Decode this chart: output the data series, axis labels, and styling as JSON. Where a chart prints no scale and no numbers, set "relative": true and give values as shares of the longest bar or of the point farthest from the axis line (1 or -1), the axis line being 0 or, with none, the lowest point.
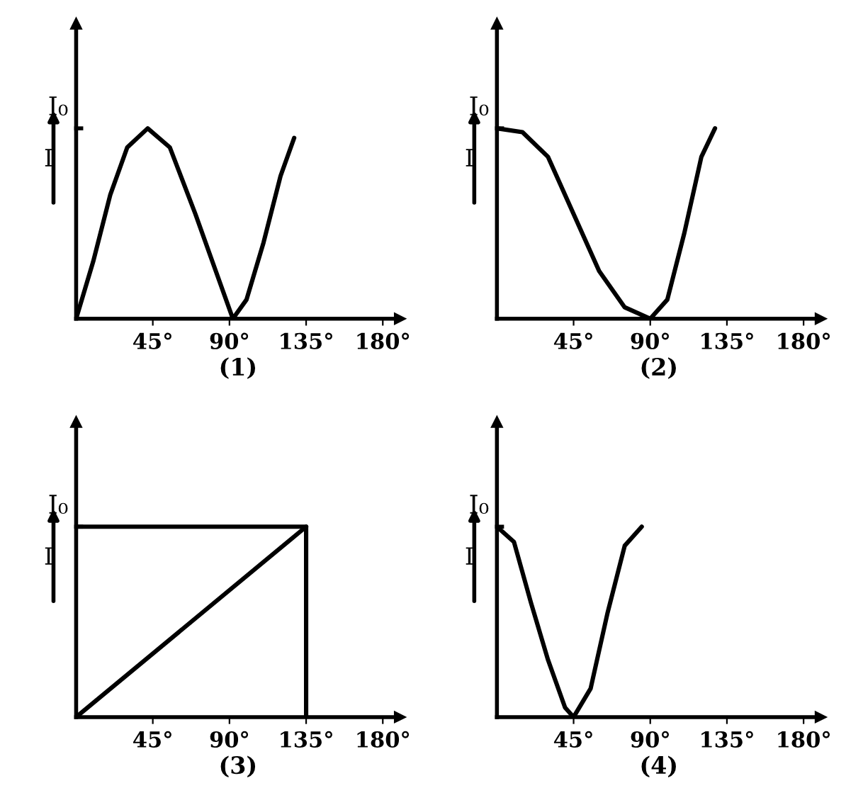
{
  "chart_data": [
    {
      "type": "line",
      "relative": true,
      "xlabel": "(1)",
      "ylabel": "I",
      "annotations": [
        "I₀"
      ],
      "xlim": [
        0,
        190
      ],
      "xticks": [
        {
          "value": 45,
          "label": "45°"
        },
        {
          "value": 90,
          "label": "90°"
        },
        {
          "value": 135,
          "label": "135°"
        },
        {
          "value": 180,
          "label": "180°"
        }
      ],
      "grid": false,
      "legend": false,
      "series": [
        {
          "color": "#000000",
          "x": [
            0,
            10,
            20,
            30,
            42,
            55,
            70,
            80,
            92,
            100,
            110,
            120,
            128
          ],
          "values": [
            0,
            0.3,
            0.65,
            0.9,
            1,
            0.9,
            0.55,
            0.3,
            0,
            0.1,
            0.4,
            0.75,
            0.95
          ]
        }
      ]
    },
    {
      "type": "line",
      "relative": true,
      "xlabel": "(2)",
      "ylabel": "I",
      "annotations": [
        "I₀"
      ],
      "xlim": [
        0,
        190
      ],
      "xticks": [
        {
          "value": 45,
          "label": "45°"
        },
        {
          "value": 90,
          "label": "90°"
        },
        {
          "value": 135,
          "label": "135°"
        },
        {
          "value": 180,
          "label": "180°"
        }
      ],
      "grid": false,
      "legend": false,
      "series": [
        {
          "color": "#000000",
          "x": [
            0,
            15,
            30,
            45,
            60,
            75,
            90,
            100,
            110,
            120,
            128
          ],
          "values": [
            1,
            0.98,
            0.85,
            0.55,
            0.25,
            0.06,
            0,
            0.1,
            0.45,
            0.85,
            1
          ]
        }
      ]
    },
    {
      "type": "line",
      "relative": true,
      "xlabel": "(3)",
      "ylabel": "I",
      "annotations": [
        "I₀"
      ],
      "xlim": [
        0,
        190
      ],
      "xticks": [
        {
          "value": 45,
          "label": "45°"
        },
        {
          "value": 90,
          "label": "90°"
        },
        {
          "value": 135,
          "label": "135°"
        },
        {
          "value": 180,
          "label": "180°"
        }
      ],
      "grid": false,
      "legend": false,
      "series": [
        {
          "color": "#000000",
          "x": [
            0,
            135
          ],
          "values": [
            0,
            1
          ]
        },
        {
          "color": "#000000",
          "x": [
            0,
            135
          ],
          "values": [
            1,
            1
          ]
        }
      ],
      "ref_lines": [
        {
          "axis": "x",
          "value": 135,
          "color": "#000000"
        }
      ]
    },
    {
      "type": "line",
      "relative": true,
      "xlabel": "(4)",
      "ylabel": "I",
      "annotations": [
        "I₀"
      ],
      "xlim": [
        0,
        190
      ],
      "xticks": [
        {
          "value": 45,
          "label": "45°"
        },
        {
          "value": 90,
          "label": "90°"
        },
        {
          "value": 135,
          "label": "135°"
        },
        {
          "value": 180,
          "label": "180°"
        }
      ],
      "grid": false,
      "legend": false,
      "series": [
        {
          "color": "#000000",
          "x": [
            0,
            10,
            20,
            30,
            40,
            45,
            55,
            65,
            75,
            85
          ],
          "values": [
            1,
            0.92,
            0.6,
            0.3,
            0.05,
            0,
            0.15,
            0.55,
            0.9,
            1
          ]
        }
      ]
    }
  ]
}
